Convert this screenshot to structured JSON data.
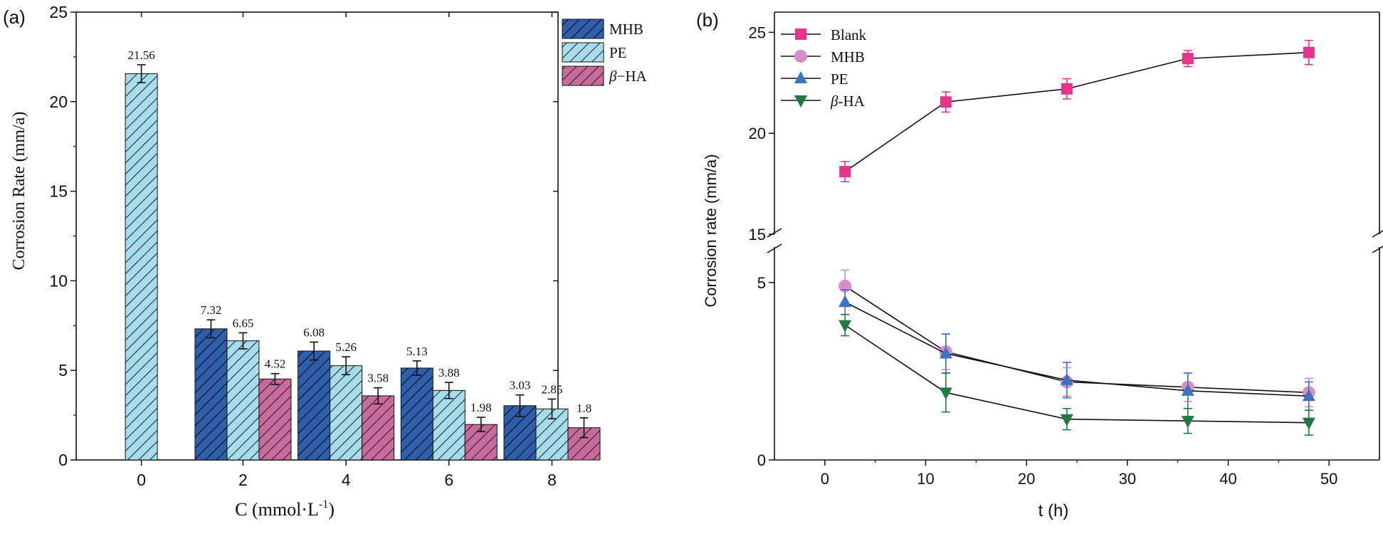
{
  "chart_data": [
    {
      "panel_label": "(a)",
      "type": "bar",
      "title": "",
      "xlabel_main": "C (mmol·L",
      "xlabel_sup": "-1",
      "xlabel_close": ")",
      "ylabel": "Corrosion Rate (mm/a)",
      "ylim": [
        0,
        25
      ],
      "yticks": [
        "0",
        "5",
        "10",
        "15",
        "20",
        "25"
      ],
      "categories": [
        "0",
        "2",
        "4",
        "6",
        "8"
      ],
      "series": [
        {
          "name": "MHB",
          "values": [
            null,
            7.32,
            6.08,
            5.13,
            3.03
          ],
          "errors": [
            null,
            0.5,
            0.5,
            0.4,
            0.6
          ],
          "labels": [
            null,
            "7.32",
            "6.08",
            "5.13",
            "3.03"
          ],
          "color": "#2f5fa8"
        },
        {
          "name": "PE",
          "values": [
            21.56,
            6.65,
            5.26,
            3.88,
            2.85
          ],
          "errors": [
            0.5,
            0.45,
            0.5,
            0.45,
            0.55
          ],
          "labels": [
            "21.56",
            "6.65",
            "5.26",
            "3.88",
            "2.85"
          ],
          "color": "#a6dde9"
        },
        {
          "name": "HA",
          "prefix": "β",
          "values": [
            null,
            4.52,
            3.58,
            1.98,
            1.8
          ],
          "errors": [
            null,
            0.3,
            0.45,
            0.4,
            0.55
          ],
          "labels": [
            null,
            "4.52",
            "3.58",
            "1.98",
            "1.8"
          ],
          "color": "#c66c9a"
        }
      ],
      "legend": {
        "position": "top-right",
        "entries": [
          "MHB",
          "PE",
          "HA"
        ],
        "beta_prefix": "β",
        "beta_sep": "−"
      },
      "grid": false
    },
    {
      "panel_label": "(b)",
      "type": "line",
      "title": "",
      "xlabel": "t (h)",
      "ylabel": "Corrosion rate (mm/a)",
      "xlim": [
        -5,
        55
      ],
      "xticks": [
        "0",
        "10",
        "20",
        "30",
        "40",
        "50"
      ],
      "y_axis_break": {
        "lower": [
          0,
          6
        ],
        "upper": [
          15,
          26
        ]
      },
      "yticks": [
        "0",
        "5",
        "15",
        "20",
        "25"
      ],
      "x": [
        2,
        12,
        24,
        36,
        48
      ],
      "series": [
        {
          "name": "Blank",
          "marker": "square",
          "color": "#e8338a",
          "values": [
            18.1,
            21.55,
            22.2,
            23.7,
            24.0
          ],
          "errors": [
            0.5,
            0.5,
            0.5,
            0.4,
            0.6
          ]
        },
        {
          "name": "MHB",
          "marker": "circle",
          "color": "#d98cc6",
          "values": [
            4.9,
            3.05,
            2.2,
            2.05,
            1.9
          ],
          "errors": [
            0.45,
            0.5,
            0.4,
            0.4,
            0.4
          ]
        },
        {
          "name": "PE",
          "marker": "triangle-up",
          "color": "#3a74c2",
          "values": [
            4.45,
            3.0,
            2.25,
            1.95,
            1.8
          ],
          "errors": [
            0.35,
            0.55,
            0.5,
            0.5,
            0.4
          ]
        },
        {
          "name": "HA",
          "prefix": "β",
          "marker": "triangle-down",
          "color": "#1f7a3e",
          "values": [
            3.8,
            1.9,
            1.15,
            1.1,
            1.05
          ],
          "errors": [
            0.3,
            0.55,
            0.3,
            0.35,
            0.35
          ]
        }
      ],
      "legend": {
        "position": "top-left",
        "entries": [
          "Blank",
          "MHB",
          "PE",
          "HA"
        ],
        "beta_prefix": "β",
        "beta_sep": "-"
      },
      "grid": false
    }
  ]
}
